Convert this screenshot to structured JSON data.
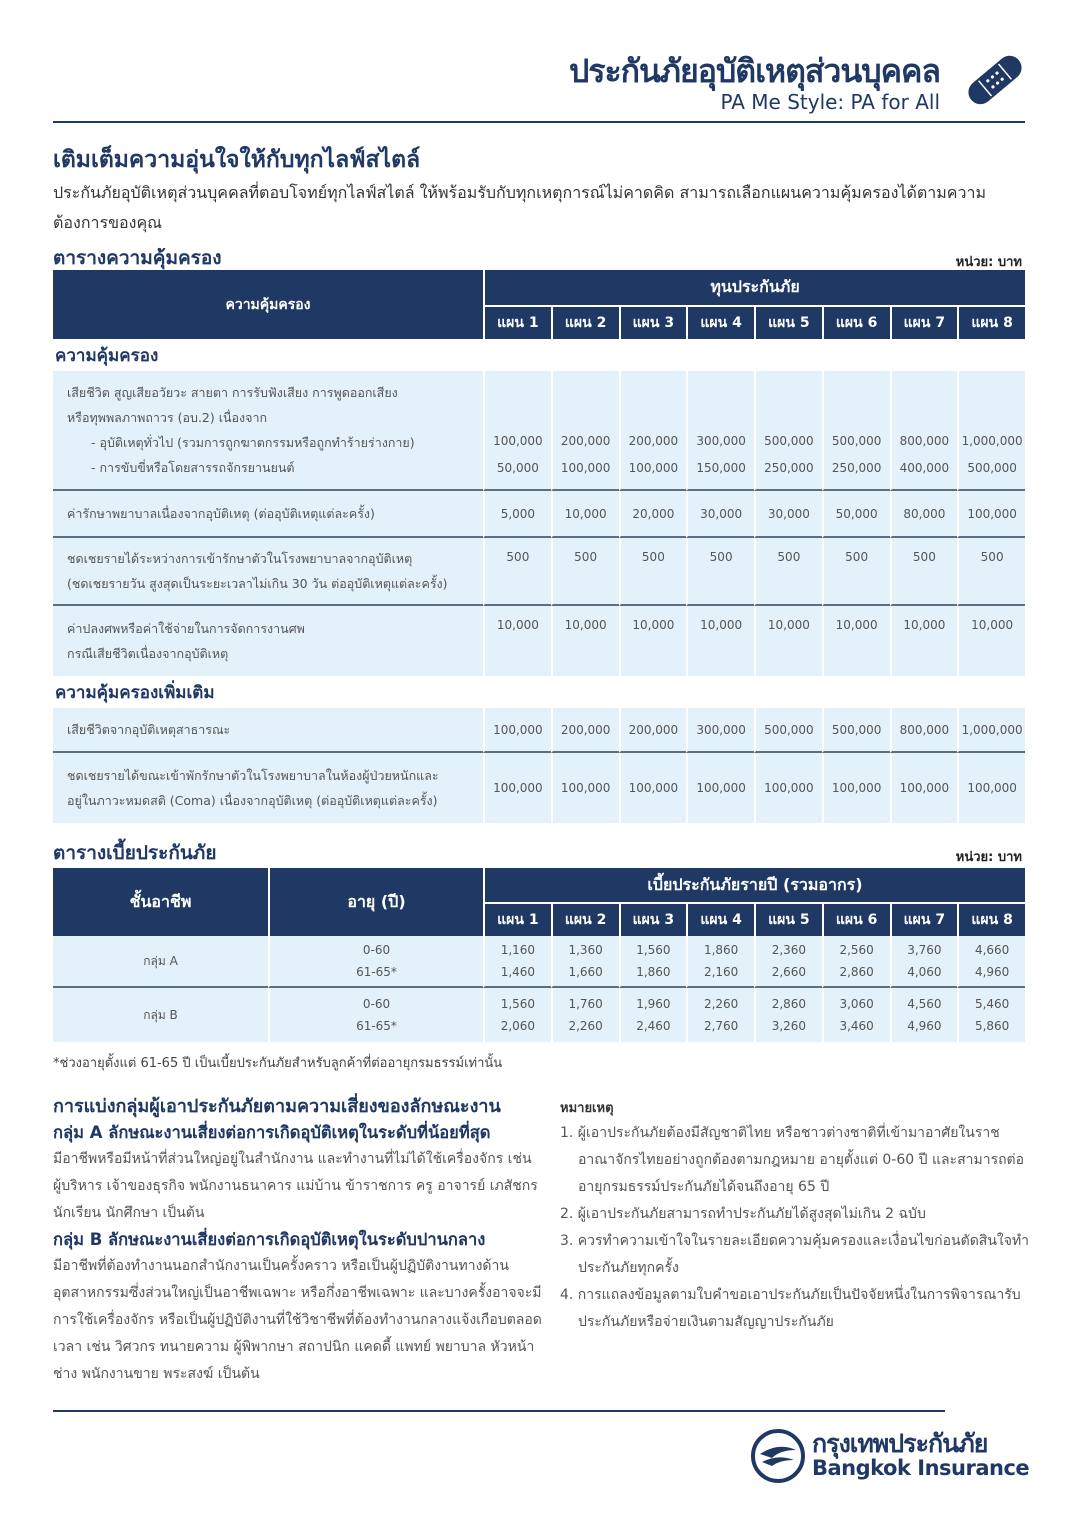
{
  "header": {
    "title": "ประกันภัยอุบัติเหตุส่วนบุคคล",
    "subtitle": "PA Me Style: PA for All",
    "icon": "bandage-icon"
  },
  "intro": {
    "headline": "เติมเต็มความอุ่นใจให้กับทุกไลฟ์สไตล์",
    "text": "ประกันภัยอุบัติเหตุส่วนบุคคลที่ตอบโจทย์ทุกไลฟ์สไตล์ ให้พร้อมรับกับทุกเหตุการณ์ไม่คาดคิด สามารถเลือกแผนความคุ้มครองได้ตามความต้องการของคุณ"
  },
  "coverage_table": {
    "title": "ตารางความคุ้มครอง",
    "unit": "หน่วย: บาท",
    "col_header": "ความคุ้มครอง",
    "group_header": "ทุนประกันภัย",
    "plans": [
      "แผน 1",
      "แผน 2",
      "แผน 3",
      "แผน 4",
      "แผน 5",
      "แผน 6",
      "แผน 7",
      "แผน 8"
    ],
    "section1": "ความคุ้มครอง",
    "row1": {
      "lines": [
        "เสียชีวิต สูญเสียอวัยวะ สายตา การรับฟังเสียง การพูดออกเสียง",
        "หรือทุพพลภาพถาวร (อบ.2) เนื่องจาก",
        "- อุบัติเหตุทั่วไป (รวมการถูกฆาตกรรมหรือถูกทำร้ายร่างกาย)",
        "- การขับขี่หรือโดยสารรถจักรยานยนต์"
      ],
      "general": [
        "100,000",
        "200,000",
        "200,000",
        "300,000",
        "500,000",
        "500,000",
        "800,000",
        "1,000,000"
      ],
      "motorcycle": [
        "50,000",
        "100,000",
        "100,000",
        "150,000",
        "250,000",
        "250,000",
        "400,000",
        "500,000"
      ]
    },
    "row2": {
      "lines": [
        "ค่ารักษาพยาบาลเนื่องจากอุบัติเหตุ (ต่ออุบัติเหตุแต่ละครั้ง)"
      ],
      "values": [
        "5,000",
        "10,000",
        "20,000",
        "30,000",
        "30,000",
        "50,000",
        "80,000",
        "100,000"
      ]
    },
    "row3": {
      "lines": [
        "ชดเชยรายได้ระหว่างการเข้ารักษาตัวในโรงพยาบาลจากอุบัติเหตุ",
        "(ชดเชยรายวัน สูงสุดเป็นระยะเวลาไม่เกิน 30 วัน ต่ออุบัติเหตุแต่ละครั้ง)"
      ],
      "values": [
        "500",
        "500",
        "500",
        "500",
        "500",
        "500",
        "500",
        "500"
      ]
    },
    "row4": {
      "lines": [
        "ค่าปลงศพหรือค่าใช้จ่ายในการจัดการงานศพ",
        "กรณีเสียชีวิตเนื่องจากอุบัติเหตุ"
      ],
      "values": [
        "10,000",
        "10,000",
        "10,000",
        "10,000",
        "10,000",
        "10,000",
        "10,000",
        "10,000"
      ]
    },
    "section2": "ความคุ้มครองเพิ่มเติม",
    "row5": {
      "lines": [
        "เสียชีวิตจากอุบัติเหตุสาธารณะ"
      ],
      "values": [
        "100,000",
        "200,000",
        "200,000",
        "300,000",
        "500,000",
        "500,000",
        "800,000",
        "1,000,000"
      ]
    },
    "row6": {
      "lines": [
        "ชดเชยรายได้ขณะเข้าพักรักษาตัวในโรงพยาบาลในห้องผู้ป่วยหนักและ",
        "อยู่ในภาวะหมดสติ (Coma) เนื่องจากอุบัติเหตุ (ต่ออุบัติเหตุแต่ละครั้ง)"
      ],
      "values": [
        "100,000",
        "100,000",
        "100,000",
        "100,000",
        "100,000",
        "100,000",
        "100,000",
        "100,000"
      ]
    }
  },
  "premium_table": {
    "title": "ตารางเบี้ยประกันภัย",
    "unit": "หน่วย: บาท",
    "col_class": "ชั้นอาชีพ",
    "col_age": "อายุ (ปี)",
    "group_header": "เบี้ยประกันภัยรายปี (รวมอากร)",
    "plans": [
      "แผน 1",
      "แผน 2",
      "แผน 3",
      "แผน 4",
      "แผน 5",
      "แผน 6",
      "แผน 7",
      "แผน 8"
    ],
    "rows": [
      {
        "group": "กลุ่ม A",
        "ages": [
          "0-60",
          "61-65*"
        ],
        "values": [
          [
            "1,160",
            "1,360",
            "1,560",
            "1,860",
            "2,360",
            "2,560",
            "3,760",
            "4,660"
          ],
          [
            "1,460",
            "1,660",
            "1,860",
            "2,160",
            "2,660",
            "2,860",
            "4,060",
            "4,960"
          ]
        ]
      },
      {
        "group": "กลุ่ม B",
        "ages": [
          "0-60",
          "61-65*"
        ],
        "values": [
          [
            "1,560",
            "1,760",
            "1,960",
            "2,260",
            "2,860",
            "3,060",
            "4,560",
            "5,460"
          ],
          [
            "2,060",
            "2,260",
            "2,460",
            "2,760",
            "3,260",
            "3,460",
            "4,960",
            "5,860"
          ]
        ]
      }
    ],
    "footnote": "*ช่วงอายุตั้งแต่ 61-65 ปี เป็นเบี้ยประกันภัยสำหรับลูกค้าที่ต่ออายุกรมธรรม์เท่านั้น"
  },
  "risk_groups": {
    "title": "การแบ่งกลุ่มผู้เอาประกันภัยตามความเสี่ยงของลักษณะงาน",
    "a_title": "กลุ่ม A ลักษณะงานเสี่ยงต่อการเกิดอุบัติเหตุในระดับที่น้อยที่สุด",
    "a_text": "มีอาชีพหรือมีหน้าที่ส่วนใหญ่อยู่ในสำนักงาน และทำงานที่ไม่ได้ใช้เครื่องจักร เช่น ผู้บริหาร เจ้าของธุรกิจ พนักงานธนาคาร แม่บ้าน ข้าราชการ ครู อาจารย์ เภสัชกร นักเรียน นักศึกษา เป็นต้น",
    "b_title": "กลุ่ม B ลักษณะงานเสี่ยงต่อการเกิดอุบัติเหตุในระดับปานกลาง",
    "b_text": "มีอาชีพที่ต้องทำงานนอกสำนักงานเป็นครั้งคราว หรือเป็นผู้ปฏิบัติงานทางด้านอุตสาหกรรมซึ่งส่วนใหญ่เป็นอาชีพเฉพาะ หรือกึ่งอาชีพเฉพาะ และบางครั้งอาจจะมีการใช้เครื่องจักร หรือเป็นผู้ปฏิบัติงานที่ใช้วิชาชีพที่ต้องทำงานกลางแจ้งเกือบตลอดเวลา เช่น วิศวกร ทนายความ ผู้พิพากษา สถาปนิก แคดดี้ แพทย์ พยาบาล หัวหน้าช่าง พนักงานขาย พระสงฆ์ เป็นต้น"
  },
  "notes": {
    "title": "หมายเหตุ",
    "items": [
      "1. ผู้เอาประกันภัยต้องมีสัญชาติไทย หรือชาวต่างชาติที่เข้ามาอาศัยในราชอาณาจักรไทยอย่างถูกต้องตามกฎหมาย อายุตั้งแต่ 0-60 ปี และสามารถต่ออายุกรมธรรม์ประกันภัยได้จนถึงอายุ 65 ปี",
      "2. ผู้เอาประกันภัยสามารถทำประกันภัยได้สูงสุดไม่เกิน 2 ฉบับ",
      "3. ควรทำความเข้าใจในรายละเอียดความคุ้มครองและเงื่อนไขก่อนตัดสินใจทำประกันภัยทุกครั้ง",
      "4. การแถลงข้อมูลตามใบคำขอเอาประกันภัยเป็นปัจจัยหนึ่งในการพิจารณารับประกันภัยหรือจ่ายเงินตามสัญญาประกันภัย"
    ]
  },
  "footer": {
    "logo_th": "กรุงเทพประกันภัย",
    "logo_en": "Bangkok Insurance",
    "brand_color": "#1f3864"
  }
}
